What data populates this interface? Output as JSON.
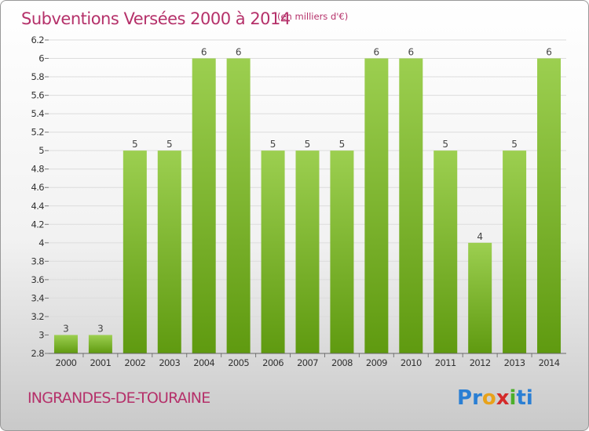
{
  "title": "Subventions Versées 2000 à 2014",
  "subtitle": "(en milliers d'€)",
  "commune": "INGRANDES-DE-TOURAINE",
  "logo": {
    "letters": [
      "P",
      "r",
      "o",
      "x",
      "i",
      "t",
      "i"
    ],
    "colors": [
      "#2a7fd4",
      "#2a7fd4",
      "#e8a21a",
      "#d42a2a",
      "#4caf2a",
      "#2a7fd4",
      "#2a7fd4"
    ]
  },
  "colors": {
    "bar_light": "#9ccf50",
    "bar_dark": "#5f9a10",
    "text_accent": "#b5316a"
  },
  "chart_data": {
    "type": "bar",
    "categories": [
      "2000",
      "2001",
      "2002",
      "2003",
      "2004",
      "2005",
      "2006",
      "2007",
      "2008",
      "2009",
      "2010",
      "2011",
      "2012",
      "2013",
      "2014"
    ],
    "values": [
      3,
      3,
      5,
      5,
      6,
      6,
      5,
      5,
      5,
      6,
      6,
      5,
      4,
      5,
      6
    ],
    "data_labels": [
      "3",
      "3",
      "5",
      "5",
      "6",
      "6",
      "5",
      "5",
      "5",
      "6",
      "6",
      "5",
      "4",
      "5",
      "6"
    ],
    "y_tick_labels": [
      "2.8",
      "3",
      "3.2",
      "3.4",
      "3.6",
      "3.8",
      "4",
      "4.2",
      "4.4",
      "4.6",
      "4.8",
      "5",
      "5.2",
      "5.4",
      "5.6",
      "5.8",
      "6",
      "6.2"
    ],
    "y_tick_positions": [
      2.8,
      3.0,
      3.2,
      3.4,
      3.6,
      3.8,
      4.0,
      4.2,
      4.4,
      4.6,
      4.8,
      5.0,
      5.2,
      5.4,
      5.6,
      5.8,
      6.0,
      6.2
    ],
    "ylim": [
      2.8,
      6.2
    ],
    "grid": true,
    "legend": "none"
  }
}
